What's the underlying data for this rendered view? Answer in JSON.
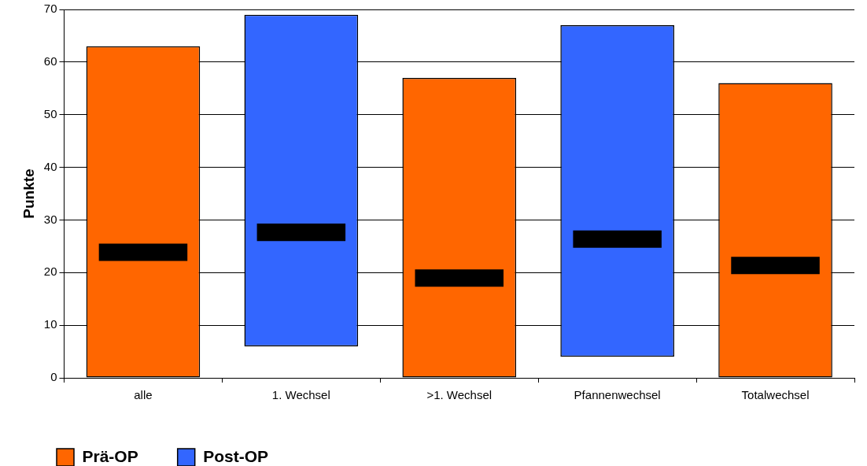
{
  "chart_data": {
    "type": "bar",
    "categories": [
      "alle",
      "1. Wechsel",
      ">1. Wechsel",
      "Pfannenwechsel",
      "Totalwechsel"
    ],
    "series": [
      {
        "name": "Prä-OP",
        "color": "#ff6600",
        "values": [
          63,
          null,
          57,
          null,
          56
        ],
        "base": [
          0,
          null,
          0,
          null,
          0
        ]
      },
      {
        "name": "Post-OP",
        "color": "#3366ff",
        "values": [
          null,
          63,
          null,
          63,
          null
        ],
        "base": [
          null,
          6,
          null,
          4,
          null
        ]
      },
      {
        "color": "#000000",
        "values": [
          3.3,
          3.3,
          3.3,
          3.3,
          3.3
        ],
        "base": [
          22.2,
          26,
          17.3,
          24.7,
          19.7
        ]
      }
    ],
    "ylabel": "Punkte",
    "ylim": [
      0,
      70
    ],
    "yticks": [
      0,
      10,
      20,
      30,
      40,
      50,
      60,
      70
    ],
    "grid": "y",
    "legend": "bottom left"
  }
}
